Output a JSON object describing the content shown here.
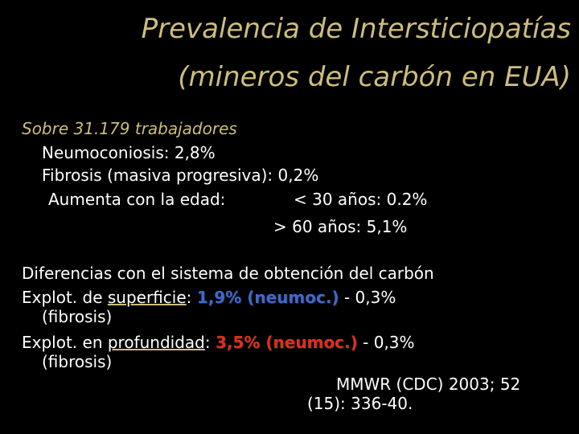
{
  "title": {
    "lines": [
      "Prevalencia de Intersticiopatías",
      "(mineros del carbón en EUA)"
    ]
  },
  "summary": {
    "intro": "Sobre 31.179 trabajadores",
    "items": [
      "Neumoconiosis: 2,8%",
      "Fibrosis (masiva progresiva): 0,2%"
    ],
    "age": {
      "label": "Aumenta con la edad:",
      "under_30": "< 30 años: 0.2%",
      "over_60": "> 60 años: 5,1%"
    }
  },
  "differences": {
    "heading": "Diferencias con el sistema de obtención del carbón",
    "rows": [
      {
        "prefix": "Explot. de",
        "method": "superficie",
        "colon": ":",
        "rate": "1,9% (neumoc.)",
        "rest": "- 0,3%",
        "note": "(fibrosis)"
      },
      {
        "prefix": "Explot. en",
        "method": "profundidad",
        "colon": ":",
        "rate": "3,5% (neumoc.)",
        "rest": "- 0,3%",
        "note": "(fibrosis)"
      }
    ]
  },
  "reference": [
    "MMWR (CDC) 2003; 52",
    "(15): 336-40."
  ]
}
